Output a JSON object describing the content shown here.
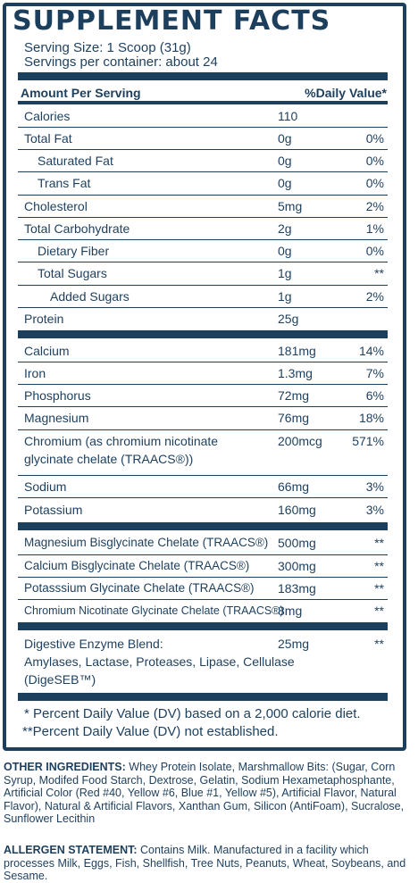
{
  "title": "SUPPLEMENT FACTS",
  "serving_size": "Serving Size: 1 Scoop (31g)",
  "servings_per_container": "Servings per container: about 24",
  "header": {
    "amount": "Amount Per Serving",
    "dv": "%Daily Value*"
  },
  "rows": [
    {
      "name": "Calories",
      "amount": "110",
      "dv": ""
    },
    {
      "name": "Total Fat",
      "amount": "0g",
      "dv": "0%"
    },
    {
      "name": "Saturated Fat",
      "amount": "0g",
      "dv": "0%"
    },
    {
      "name": "Trans Fat",
      "amount": "0g",
      "dv": "0%"
    },
    {
      "name": "Cholesterol",
      "amount": "5mg",
      "dv": "2%"
    },
    {
      "name": "Total Carbohydrate",
      "amount": "2g",
      "dv": "1%"
    },
    {
      "name": "Dietary Fiber",
      "amount": "0g",
      "dv": "0%"
    },
    {
      "name": "Total Sugars",
      "amount": "1g",
      "dv": "**"
    },
    {
      "name": "Added Sugars",
      "amount": "1g",
      "dv": "2%"
    },
    {
      "name": "Protein",
      "amount": "25g",
      "dv": ""
    },
    {
      "name": "Calcium",
      "amount": "181mg",
      "dv": "14%"
    },
    {
      "name": "Iron",
      "amount": "1.3mg",
      "dv": "7%"
    },
    {
      "name": "Phosphorus",
      "amount": "72mg",
      "dv": "6%"
    },
    {
      "name": "Magnesium",
      "amount": "76mg",
      "dv": "18%"
    },
    {
      "name": "Chromium (as chromium nicotinate",
      "name2": "glycinate chelate (TRAACS®))",
      "amount": "200mcg",
      "dv": "571%"
    },
    {
      "name": "Sodium",
      "amount": "66mg",
      "dv": "3%"
    },
    {
      "name": "Potassium",
      "amount": "160mg",
      "dv": "3%"
    },
    {
      "name": "Magnesium Bisglycinate Chelate (TRAACS®)",
      "amount": "500mg",
      "dv": "**"
    },
    {
      "name": "Calcium Bisglycinate Chelate (TRAACS®)",
      "amount": "300mg",
      "dv": "**"
    },
    {
      "name": "Potasssium Glycinate Chelate (TRAACS®)",
      "amount": "183mg",
      "dv": "**"
    },
    {
      "name": "Chromium Nicotinate Glycinate Chelate (TRAACS®)",
      "amount": "8mg",
      "dv": "**"
    },
    {
      "name": "Digestive Enzyme Blend:",
      "name2": "Amylases, Lactase, Proteases, Lipase, Cellulase",
      "name3": "(DigeSEB™)",
      "amount": "25mg",
      "dv": "**"
    }
  ],
  "footnote1": "* Percent Daily Value (DV) based on a 2,000 calorie diet.",
  "footnote2": "**Percent Daily Value (DV) not established.",
  "other_ingredients": {
    "label": "OTHER INGREDIENTS:",
    "text": " Whey Protein Isolate, Marshmallow Bits: (Sugar, Corn Syrup, Modifed Food Starch, Dextrose, Gelatin, Sodium Hexametaphosphante, Artificial Color (Red #40, Yellow #6, Blue #1, Yellow #5), Artificial Flavor, Natural Flavor), Natural & Artificial Flavors, Xanthan Gum, Silicon (AntiFoam), Sucralose, Sunflower Lecithin"
  },
  "allergen": {
    "label": "ALLERGEN STATEMENT:",
    "text": " Contains Milk. Manufactured in a facility which processes Milk, Eggs, Fish, Shellfish, Tree Nuts, Peanuts, Wheat, Soybeans, and Sesame."
  }
}
